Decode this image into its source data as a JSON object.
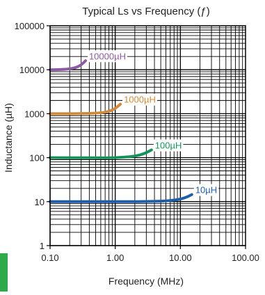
{
  "chart_data": {
    "type": "line",
    "title": "Typical Ls vs Frequency (ƒ)",
    "xlabel": "Frequency (MHz)",
    "ylabel": "Inductance (µH)",
    "x_scale": "log",
    "y_scale": "log",
    "xlim": [
      0.1,
      100
    ],
    "ylim": [
      1,
      100000
    ],
    "grid": true,
    "x_ticks": [
      {
        "value": 0.1,
        "label": "0.10"
      },
      {
        "value": 1,
        "label": "1.00"
      },
      {
        "value": 10,
        "label": "10.00"
      },
      {
        "value": 100,
        "label": "100.00"
      }
    ],
    "y_ticks": [
      {
        "value": 1,
        "label": "1"
      },
      {
        "value": 10,
        "label": "10"
      },
      {
        "value": 100,
        "label": "100"
      },
      {
        "value": 1000,
        "label": "1000"
      },
      {
        "value": 10000,
        "label": "10000"
      },
      {
        "value": 100000,
        "label": "100000"
      }
    ],
    "series": [
      {
        "name": "10000µH",
        "color": "#8e5aa2",
        "x": [
          0.1,
          0.15,
          0.2,
          0.25,
          0.3,
          0.35
        ],
        "y": [
          10000,
          10100,
          10400,
          11200,
          12800,
          16000
        ]
      },
      {
        "name": "1000µH",
        "color": "#cf8a3b",
        "x": [
          0.1,
          0.3,
          0.6,
          0.8,
          1.0,
          1.2
        ],
        "y": [
          1000,
          1000,
          1040,
          1120,
          1300,
          1650
        ]
      },
      {
        "name": "100µH",
        "color": "#16935a",
        "x": [
          0.1,
          0.5,
          1.0,
          2.0,
          2.8,
          3.6
        ],
        "y": [
          100,
          99,
          99,
          107,
          123,
          150
        ]
      },
      {
        "name": "10µH",
        "color": "#1f5fa8",
        "x": [
          0.1,
          1.0,
          5.0,
          9.0,
          12.0,
          15.0
        ],
        "y": [
          10,
          10,
          10.1,
          11,
          12.3,
          14.5
        ]
      }
    ]
  }
}
